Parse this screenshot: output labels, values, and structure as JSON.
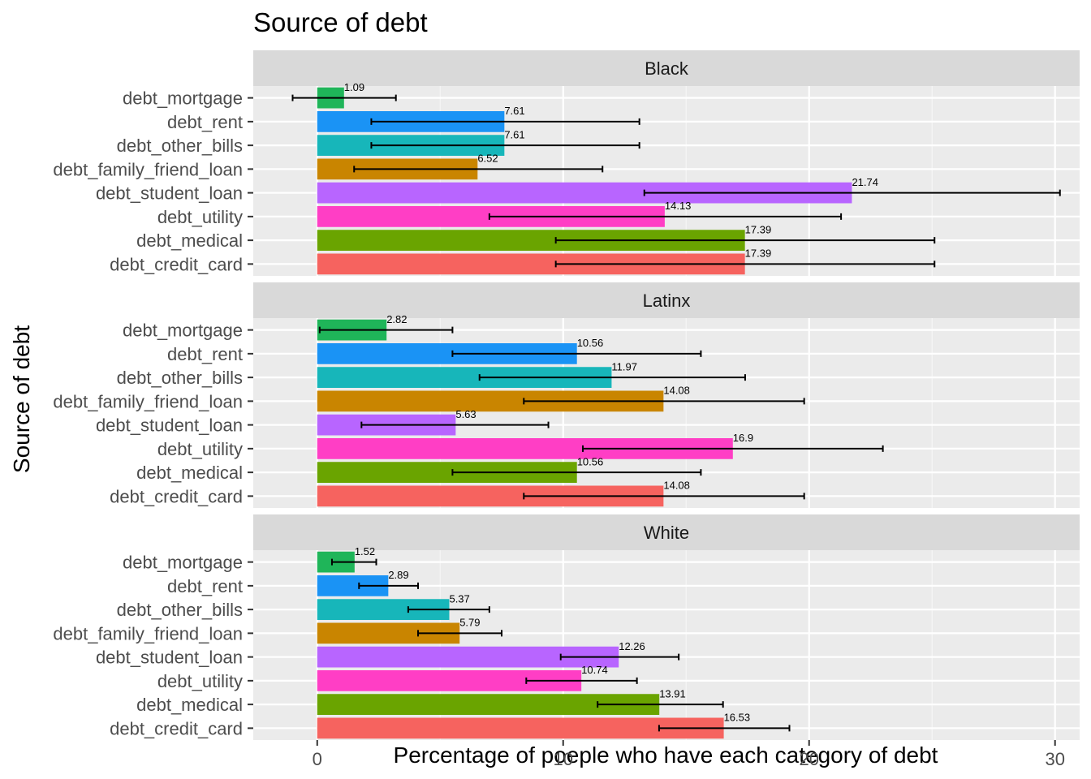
{
  "chart_data": {
    "type": "bar",
    "orientation": "horizontal",
    "title": "Source of debt",
    "xlabel": "Percentage of poeple who have each category of debt",
    "ylabel": "Source of debt",
    "xlim": [
      -2.6,
      31.0
    ],
    "xticks": [
      0,
      10,
      20,
      30
    ],
    "grid": true,
    "legend": "none",
    "categories": [
      "debt_mortgage",
      "debt_rent",
      "debt_other_bills",
      "debt_family_friend_loan",
      "debt_student_loan",
      "debt_utility",
      "debt_medical",
      "debt_credit_card"
    ],
    "colors": {
      "debt_mortgage": "#1fb559",
      "debt_rent": "#1a93f5",
      "debt_other_bills": "#17b6ba",
      "debt_family_friend_loan": "#c98500",
      "debt_student_loan": "#b865ff",
      "debt_utility": "#ff3ec5",
      "debt_medical": "#6aa400",
      "debt_credit_card": "#f6635f"
    },
    "panels": [
      {
        "name": "Black",
        "values": [
          1.09,
          7.61,
          7.61,
          6.52,
          21.74,
          14.13,
          17.39,
          17.39
        ],
        "labels": [
          "1.09",
          "7.61",
          "7.61",
          "6.52",
          "21.74",
          "14.13",
          "17.39",
          "17.39"
        ],
        "error_low": [
          -1.0,
          2.2,
          2.2,
          1.5,
          13.3,
          7.0,
          9.7,
          9.7
        ],
        "error_high": [
          3.2,
          13.1,
          13.1,
          11.6,
          30.2,
          21.3,
          25.1,
          25.1
        ]
      },
      {
        "name": "Latinx",
        "values": [
          2.82,
          10.56,
          11.97,
          14.08,
          5.63,
          16.9,
          10.56,
          14.08
        ],
        "labels": [
          "2.82",
          "10.56",
          "11.97",
          "14.08",
          "5.63",
          "16.9",
          "10.56",
          "14.08"
        ],
        "error_low": [
          0.1,
          5.5,
          6.6,
          8.4,
          1.8,
          10.8,
          5.5,
          8.4
        ],
        "error_high": [
          5.5,
          15.6,
          17.4,
          19.8,
          9.4,
          23.0,
          15.6,
          19.8
        ]
      },
      {
        "name": "White",
        "values": [
          1.52,
          2.89,
          5.37,
          5.79,
          12.26,
          10.74,
          13.91,
          16.53
        ],
        "labels": [
          "1.52",
          "2.89",
          "5.37",
          "5.79",
          "12.26",
          "10.74",
          "13.91",
          "16.53"
        ],
        "error_low": [
          0.6,
          1.7,
          3.7,
          4.1,
          9.9,
          8.5,
          11.4,
          13.9
        ],
        "error_high": [
          2.4,
          4.1,
          7.0,
          7.5,
          14.7,
          13.0,
          16.5,
          19.2
        ]
      }
    ]
  }
}
